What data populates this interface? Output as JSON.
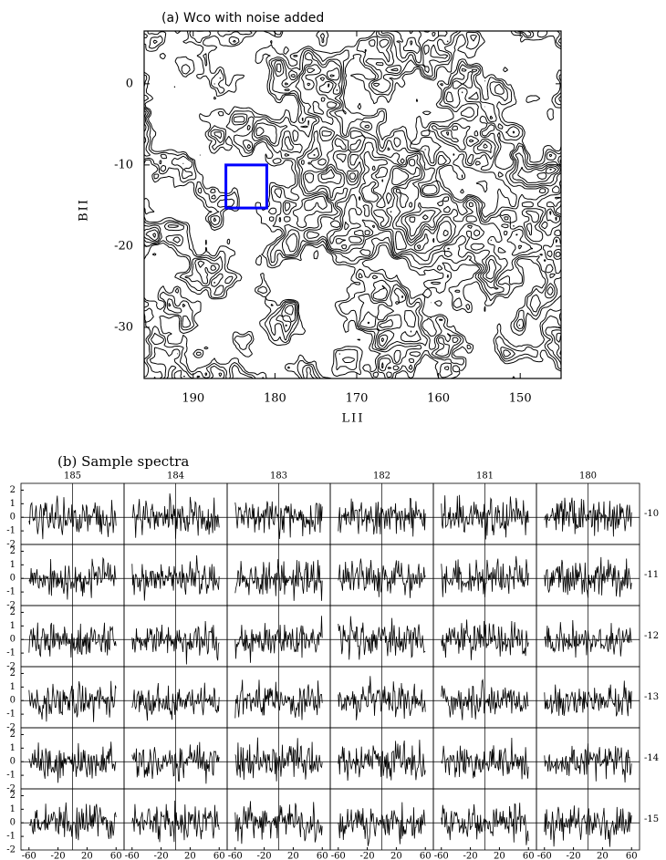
{
  "chart_data": [
    {
      "type": "contour",
      "title": "(a) Wco with noise added",
      "xlabel": "LII",
      "ylabel": "BII",
      "xlim": [
        196,
        145
      ],
      "xticks": [
        190,
        180,
        170,
        160,
        150
      ],
      "ylim": [
        -36.3,
        6.5
      ],
      "yticks": [
        0,
        -10,
        -20,
        -30
      ],
      "line_color": "#000000",
      "box": {
        "xlim": [
          186,
          181
        ],
        "ylim": [
          -10,
          -15.3
        ],
        "color": "#0000ff"
      }
    },
    {
      "type": "spectra_grid",
      "title": "(b) Sample spectra",
      "columns": [
        185,
        184,
        183,
        182,
        181,
        180
      ],
      "rows": [
        -10,
        -11,
        -12,
        -13,
        -14,
        -15
      ],
      "xlim": [
        -71,
        71
      ],
      "xticks": [
        -60,
        -20,
        20,
        60
      ],
      "ylim": [
        -2,
        2.5
      ],
      "yticks": [
        -2,
        -1,
        0,
        1,
        2
      ],
      "zero_lines": true,
      "line_color": "#000000"
    }
  ]
}
